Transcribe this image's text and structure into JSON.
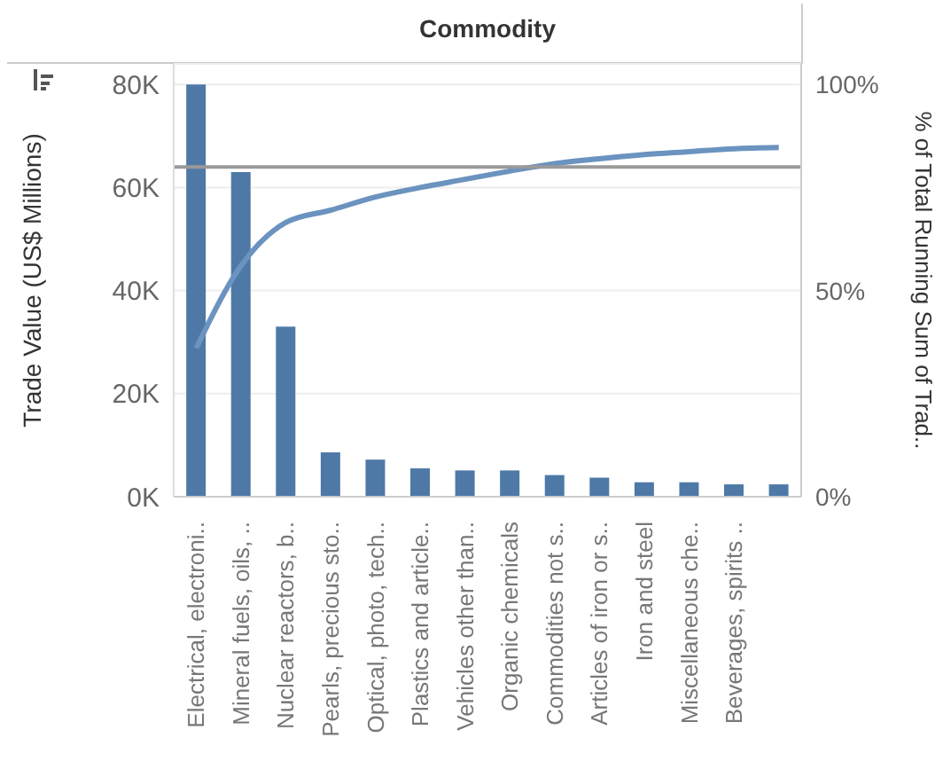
{
  "chart_data": {
    "type": "bar",
    "xlabel": "Commodity",
    "ylabel": "Trade Value (US$ Millions)",
    "y2label": "% of Total Running Sum of Trad..",
    "categories": [
      "Electrical, electroni..",
      "Mineral fuels, oils, ..",
      "Nuclear reactors, b..",
      "Pearls, precious sto..",
      "Optical, photo, tech..",
      "Plastics and article..",
      "Vehicles other than..",
      "Organic chemicals",
      "Commodities not s..",
      "Articles of iron or s..",
      "Iron and steel",
      "Miscellaneous che..",
      "Beverages, spirits ..",
      null
    ],
    "series": [
      {
        "color": "#4e79a7",
        "values": [
          80000,
          63000,
          33000,
          8600,
          7200,
          5500,
          5100,
          5100,
          4200,
          3700,
          2800,
          2800,
          2400,
          2400
        ]
      },
      {
        "type": "line",
        "axis": "y2",
        "color": "#6b93bf",
        "values": [
          36,
          56,
          66.5,
          69.5,
          72.7,
          75,
          77,
          79,
          80.8,
          82,
          83,
          83.7,
          84.4,
          84.7
        ]
      }
    ],
    "ylim": [
      0,
      84000
    ],
    "yticks": [
      {
        "value": 0,
        "label": "0K"
      },
      {
        "value": 20000,
        "label": "20K"
      },
      {
        "value": 40000,
        "label": "40K"
      },
      {
        "value": 60000,
        "label": "60K"
      },
      {
        "value": 80000,
        "label": "80K"
      }
    ],
    "y2lim": [
      0,
      105
    ],
    "y2ticks": [
      {
        "value": 0,
        "label": "0%"
      },
      {
        "value": 50,
        "label": "50%"
      },
      {
        "value": 100,
        "label": "100%"
      }
    ],
    "ref_lines": [
      {
        "axis": "y2",
        "value": 80,
        "color": "#9a9a9a"
      }
    ],
    "grid": "y",
    "marker": "none",
    "line_style": "solid"
  }
}
